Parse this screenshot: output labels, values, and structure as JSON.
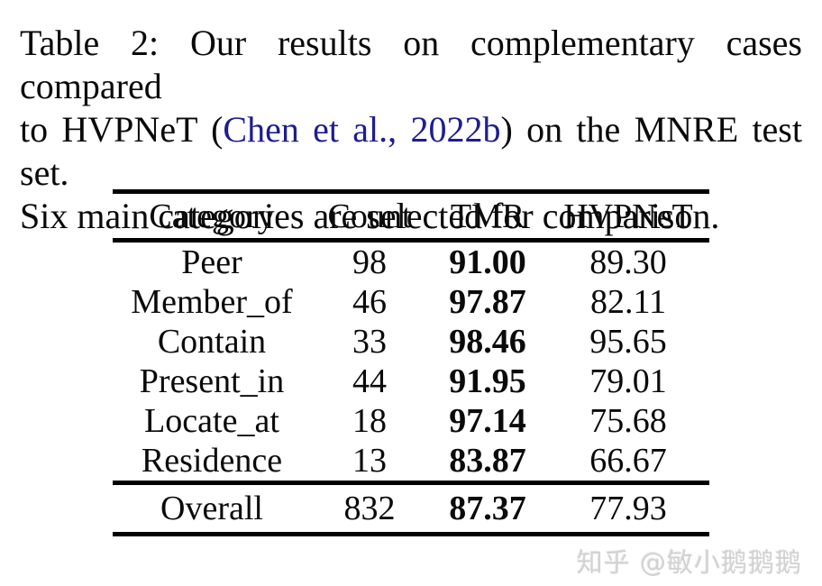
{
  "caption": {
    "line1": "Table 2: Our results on complementary cases compared",
    "line2_pre": "to HVPNeT (",
    "line2_cite": "Chen et al., 2022b",
    "line2_post": ") on the MNRE test set.",
    "line3": "Six main categories are selected for comparison."
  },
  "table": {
    "headers": [
      "Category",
      "Count",
      "TMR",
      "HVPNeT"
    ],
    "rows": [
      {
        "category": "Peer",
        "count": "98",
        "tmr": "91.00",
        "hvpnet": "89.30"
      },
      {
        "category": "Member_of",
        "count": "46",
        "tmr": "97.87",
        "hvpnet": "82.11"
      },
      {
        "category": "Contain",
        "count": "33",
        "tmr": "98.46",
        "hvpnet": "95.65"
      },
      {
        "category": "Present_in",
        "count": "44",
        "tmr": "91.95",
        "hvpnet": "79.01"
      },
      {
        "category": "Locate_at",
        "count": "18",
        "tmr": "97.14",
        "hvpnet": "75.68"
      },
      {
        "category": "Residence",
        "count": "13",
        "tmr": "83.87",
        "hvpnet": "66.67"
      }
    ],
    "overall": {
      "category": "Overall",
      "count": "832",
      "tmr": "87.37",
      "hvpnet": "77.93"
    }
  },
  "watermark": {
    "text": "知乎 @敏小鹅鹅鹅"
  },
  "colors": {
    "text": "#0a0a0a",
    "citation_link": "#1d1d92",
    "watermark": "#d2d2d2",
    "background": "#ffffff",
    "rule": "#000000"
  }
}
